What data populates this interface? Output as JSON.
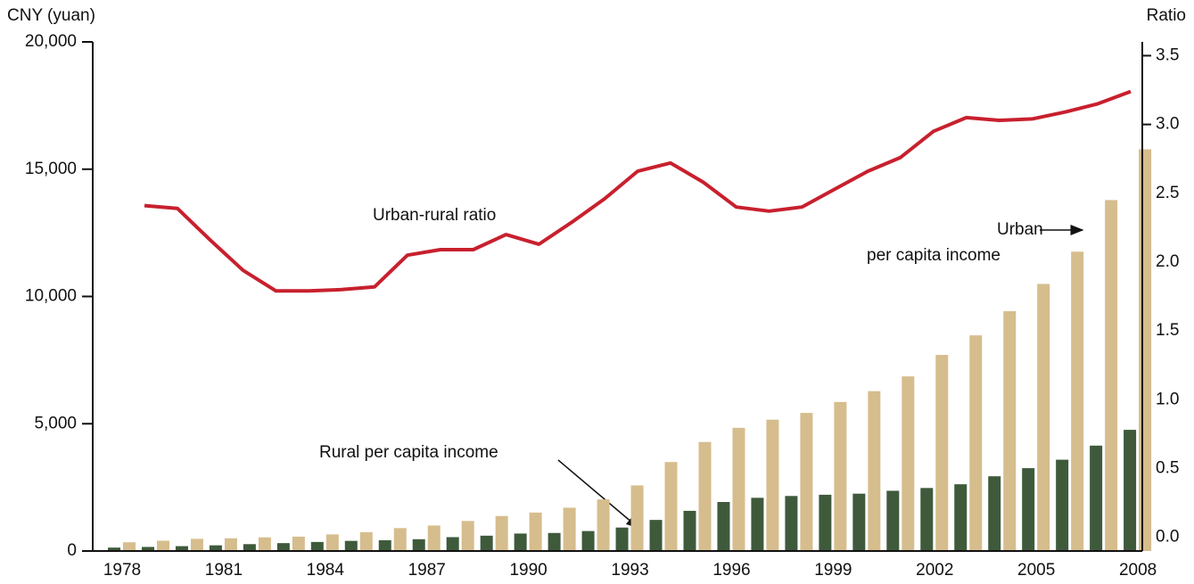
{
  "chart_data": {
    "type": "bar-line",
    "y_label": "CNY (yuan)",
    "y2_label": "Ratio",
    "categories": [
      1978,
      null,
      null,
      1981,
      null,
      null,
      1984,
      null,
      null,
      1987,
      null,
      null,
      1990,
      null,
      null,
      1993,
      null,
      null,
      1996,
      null,
      null,
      1999,
      null,
      null,
      2002,
      null,
      null,
      2005,
      null,
      null,
      2008
    ],
    "series": [
      {
        "name": "Rural per capita income",
        "color": "#3e5a3b",
        "kind": "bar",
        "values": [
          134,
          160,
          191,
          223,
          270,
          310,
          355,
          398,
          424,
          463,
          545,
          602,
          686,
          709,
          784,
          922,
          1221,
          1578,
          1926,
          2090,
          2162,
          2210,
          2253,
          2366,
          2476,
          2622,
          2936,
          3255,
          3587,
          4140,
          4761
        ]
      },
      {
        "name": "Urban per capita income",
        "color": "#d6bd8d",
        "kind": "bar",
        "values": [
          343,
          405,
          478,
          500,
          535,
          565,
          652,
          739,
          900,
          1002,
          1180,
          1374,
          1510,
          1701,
          2027,
          2577,
          3496,
          4283,
          4839,
          5160,
          5425,
          5854,
          6280,
          6860,
          7703,
          8472,
          9422,
          10493,
          11759,
          13786,
          15781
        ]
      },
      {
        "name": "Urban-rural ratio",
        "color": "#c8202e",
        "kind": "line",
        "axis": "y2",
        "values": [
          2.41,
          2.39,
          2.16,
          1.94,
          1.79,
          1.79,
          1.8,
          1.82,
          2.05,
          2.09,
          2.09,
          2.2,
          2.13,
          2.29,
          2.46,
          2.66,
          2.72,
          2.58,
          2.4,
          2.37,
          2.4,
          2.53,
          2.66,
          2.76,
          2.95,
          3.05,
          3.03,
          3.04,
          3.09,
          3.15,
          3.24
        ]
      }
    ],
    "annotations": [
      "Urban-rural ratio",
      "Urban",
      "per capita income",
      "Rural per capita income"
    ],
    "ylim": [
      0,
      20000
    ],
    "yticks": [
      0,
      {
        "value": 5000,
        "label": "5,000"
      },
      {
        "value": 10000,
        "label": "10,000"
      },
      {
        "value": 15000,
        "label": "15,000"
      },
      {
        "value": 20000,
        "label": "20,000"
      }
    ],
    "y2lim": [
      -0.1,
      3.6
    ],
    "y2ticks": [
      {
        "value": 0,
        "label": "0.0"
      },
      0.5,
      {
        "value": 1,
        "label": "1.0"
      },
      1.5,
      {
        "value": 2,
        "label": "2.0"
      },
      2.5,
      {
        "value": 3,
        "label": "3.0"
      },
      3.5
    ]
  }
}
